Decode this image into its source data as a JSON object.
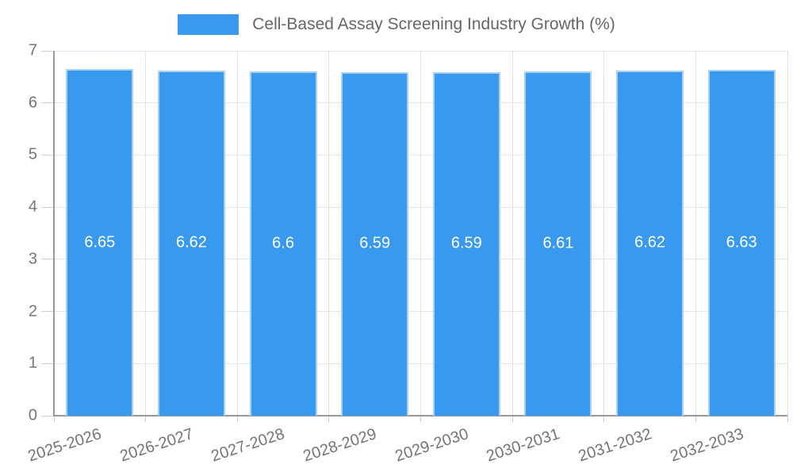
{
  "legend": {
    "label": "Cell-Based Assay Screening Industry Growth (%)"
  },
  "chart_data": {
    "type": "bar",
    "title": "Cell-Based Assay Screening Industry Growth (%)",
    "categories": [
      "2025-2026",
      "2026-2027",
      "2027-2028",
      "2028-2029",
      "2029-2030",
      "2030-2031",
      "2031-2032",
      "2032-2033"
    ],
    "values": [
      6.65,
      6.62,
      6.6,
      6.59,
      6.59,
      6.61,
      6.62,
      6.63
    ],
    "value_labels": [
      "6.65",
      "6.62",
      "6.6",
      "6.59",
      "6.59",
      "6.61",
      "6.62",
      "6.63"
    ],
    "xlabel": "",
    "ylabel": "",
    "ylim": [
      0,
      7
    ],
    "yticks": [
      "0",
      "1",
      "2",
      "3",
      "4",
      "5",
      "6",
      "7"
    ],
    "grid": true,
    "legend_position": "top-center",
    "colors": {
      "bar_fill": "#3999ee",
      "bar_border": "#a9d1f3",
      "gridline": "#e3e3e3",
      "axis_line": "#999999",
      "tick": "#cccccc",
      "axis_text": "#757575",
      "title_text": "#666666",
      "value_label_text": "#ffffff",
      "background": "#ffffff"
    }
  }
}
